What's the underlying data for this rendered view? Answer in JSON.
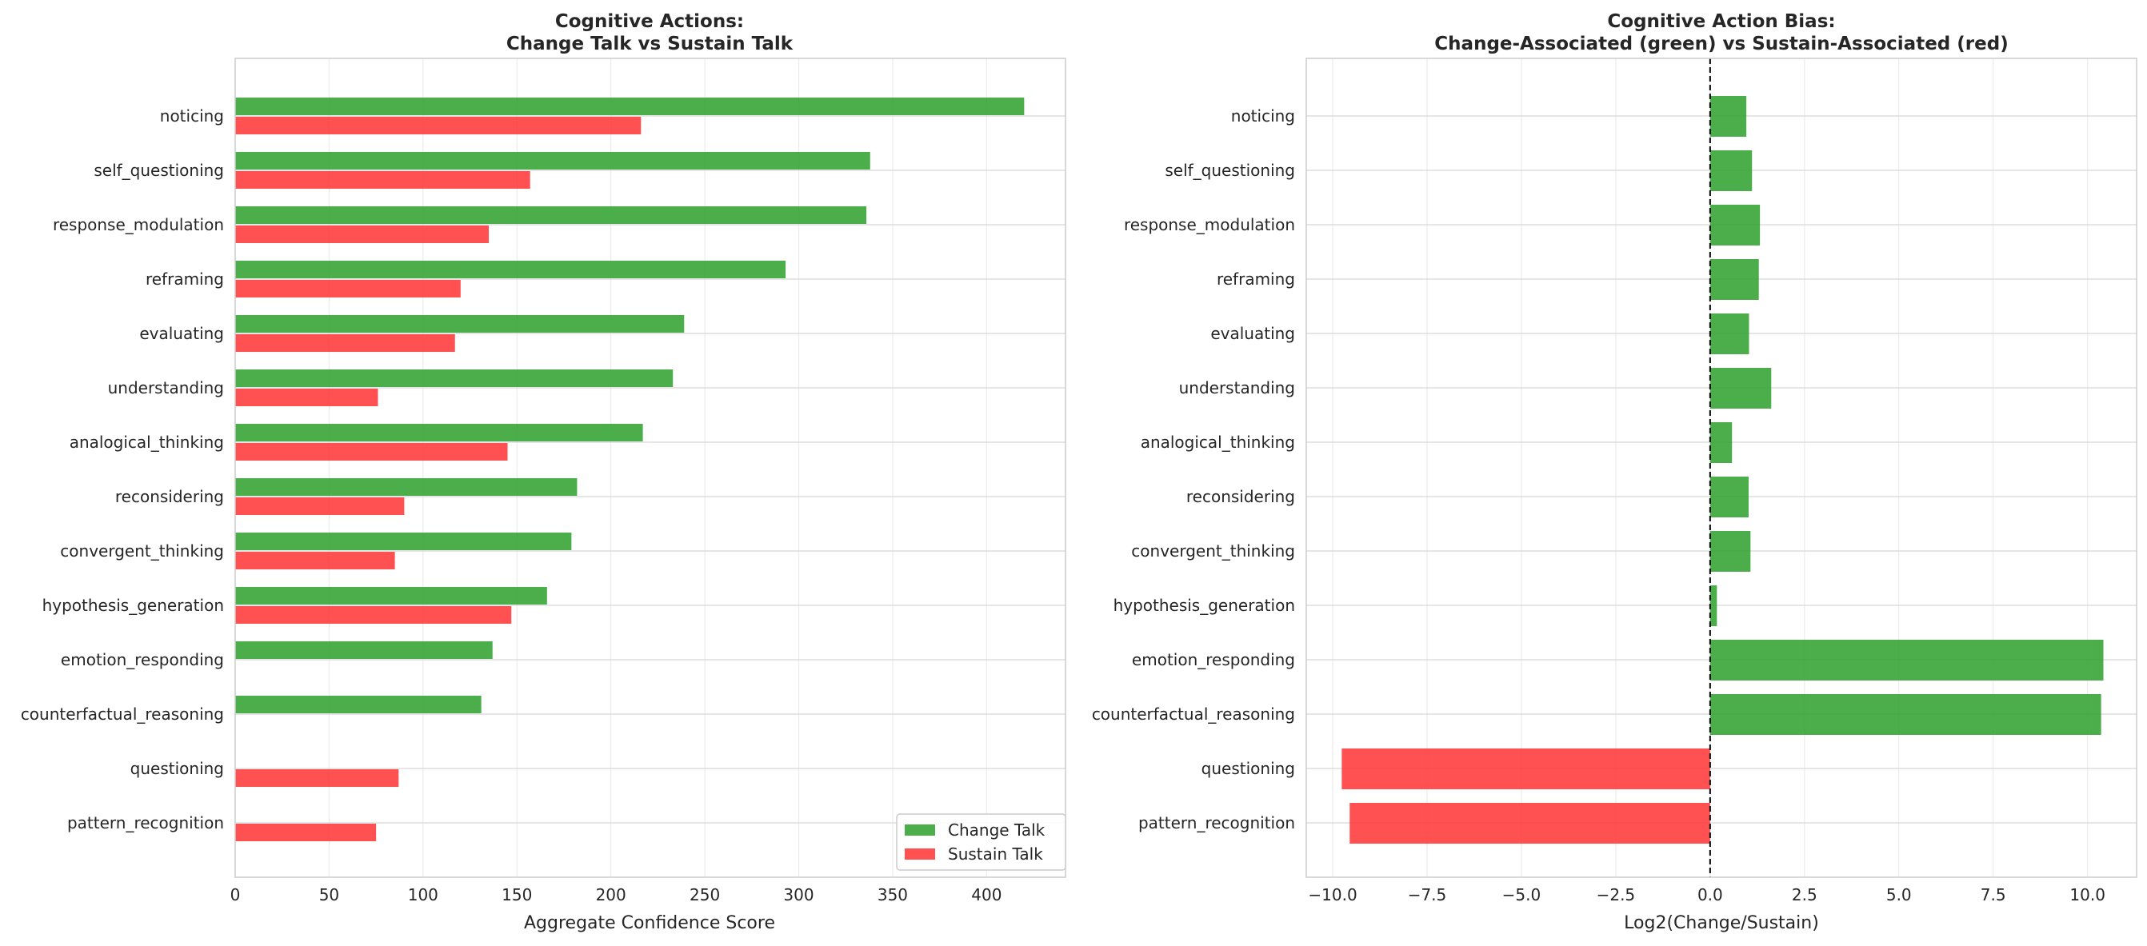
{
  "chart_data": [
    {
      "type": "bar",
      "orientation": "horizontal",
      "title": "Cognitive Actions:\nChange Talk vs Sustain Talk",
      "title_lines": [
        "Cognitive Actions:",
        "Change Talk vs Sustain Talk"
      ],
      "xlabel": "Aggregate Confidence Score",
      "ylabel": "",
      "xlim": [
        0,
        442
      ],
      "xticks": [
        0,
        50,
        100,
        150,
        200,
        250,
        300,
        350,
        400
      ],
      "grid": true,
      "legend": "bottom-right",
      "categories": [
        "noticing",
        "self_questioning",
        "response_modulation",
        "reframing",
        "evaluating",
        "understanding",
        "analogical_thinking",
        "reconsidering",
        "convergent_thinking",
        "hypothesis_generation",
        "emotion_responding",
        "counterfactual_reasoning",
        "questioning",
        "pattern_recognition"
      ],
      "series": [
        {
          "name": "Change Talk",
          "color": "#2ca02c",
          "values": [
            420,
            338,
            336,
            293,
            239,
            233,
            217,
            182,
            179,
            166,
            137,
            131,
            0,
            0
          ]
        },
        {
          "name": "Sustain Talk",
          "color": "#ff3333",
          "values": [
            216,
            157,
            135,
            120,
            117,
            76,
            145,
            90,
            85,
            147,
            0,
            0,
            87,
            75
          ]
        }
      ]
    },
    {
      "type": "bar",
      "orientation": "horizontal",
      "title": "Cognitive Action Bias:\nChange-Associated (green) vs Sustain-Associated (red)",
      "title_lines": [
        "Cognitive Action Bias:",
        "Change-Associated (green) vs Sustain-Associated (red)"
      ],
      "xlabel": "Log2(Change/Sustain)",
      "ylabel": "",
      "xlim": [
        -10.7,
        11.3
      ],
      "xticks": [
        -10.0,
        -7.5,
        -5.0,
        -2.5,
        0.0,
        2.5,
        5.0,
        7.5,
        10.0
      ],
      "xtick_labels": [
        "−10.0",
        "−7.5",
        "−5.0",
        "−2.5",
        "0.0",
        "2.5",
        "5.0",
        "7.5",
        "10.0"
      ],
      "grid": true,
      "reference_line": 0,
      "positive_color": "#2ca02c",
      "negative_color": "#ff3333",
      "categories": [
        "noticing",
        "self_questioning",
        "response_modulation",
        "reframing",
        "evaluating",
        "understanding",
        "analogical_thinking",
        "reconsidering",
        "convergent_thinking",
        "hypothesis_generation",
        "emotion_responding",
        "counterfactual_reasoning",
        "questioning",
        "pattern_recognition"
      ],
      "values": [
        0.96,
        1.11,
        1.32,
        1.29,
        1.03,
        1.62,
        0.58,
        1.02,
        1.07,
        0.18,
        10.42,
        10.36,
        -9.76,
        -9.55
      ]
    }
  ]
}
